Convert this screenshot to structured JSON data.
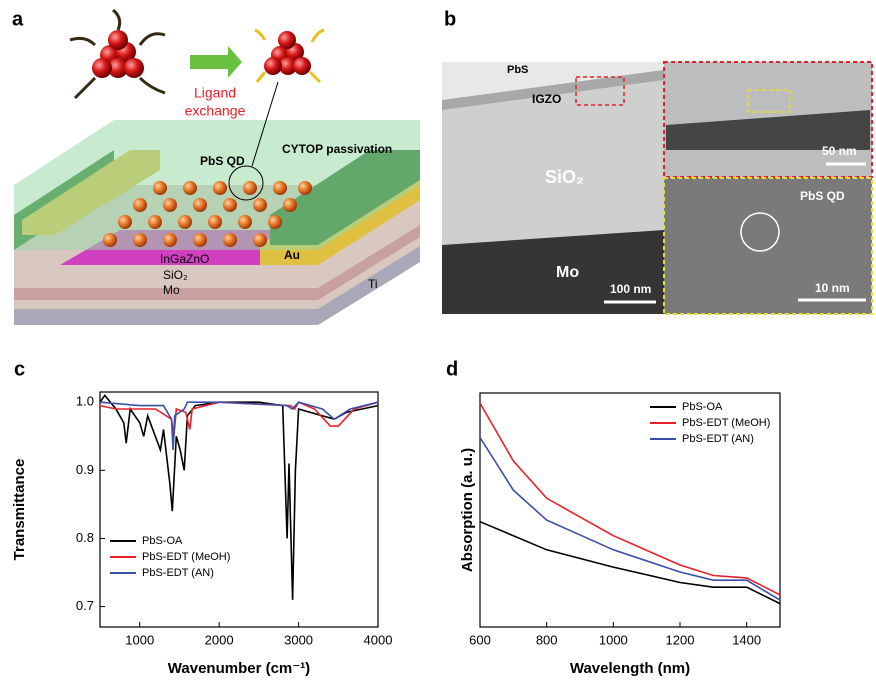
{
  "panels": {
    "a": {
      "label": "a",
      "ligand_exchange": [
        "Ligand",
        "exchange"
      ],
      "pbs_qd": "PbS QD",
      "cytop": "CYTOP passivation",
      "ingazno": "InGaZnO",
      "sio2": "SiO₂",
      "mo": "Mo",
      "au": "Au",
      "ti": "Ti"
    },
    "b": {
      "label": "b",
      "pbs": "PbS",
      "igzo": "IGZO",
      "sio2": "SiO₂",
      "mo": "Mo",
      "scale_main": "100 nm",
      "scale_top": "50 nm",
      "pbs_qd": "PbS QD",
      "scale_bottom": "10 nm"
    }
  },
  "chart_data": [
    {
      "type": "line",
      "panel_label": "c",
      "x_label": "Wavenumber (cm⁻¹)",
      "y_label": "Transmittance",
      "xlim": [
        500,
        4000
      ],
      "ylim": [
        0.67,
        1.015
      ],
      "xticks": [
        1000,
        2000,
        3000,
        4000
      ],
      "yticks": [
        0.7,
        0.8,
        0.9,
        {
          "value": 1,
          "label": "1.0"
        }
      ],
      "legend": "lower left",
      "series": [
        {
          "name": "PbS-OA",
          "color": "#000000",
          "x": [
            500,
            560,
            700,
            800,
            830,
            880,
            1000,
            1050,
            1100,
            1260,
            1300,
            1380,
            1410,
            1460,
            1510,
            1560,
            1600,
            1700,
            2000,
            2500,
            2800,
            2855,
            2880,
            2925,
            2960,
            3000,
            3300,
            3450,
            3600,
            4000
          ],
          "values": [
            1.0,
            1.01,
            0.99,
            0.97,
            0.94,
            0.99,
            0.97,
            0.95,
            0.98,
            0.93,
            0.96,
            0.88,
            0.84,
            0.95,
            0.93,
            0.9,
            0.98,
            0.995,
            1.0,
            1.0,
            0.995,
            0.8,
            0.91,
            0.71,
            0.9,
            0.99,
            0.98,
            0.975,
            0.985,
            0.995
          ]
        },
        {
          "name": "PbS-EDT (MeOH)",
          "color": "#e8202a",
          "x": [
            500,
            700,
            1000,
            1200,
            1400,
            1430,
            1460,
            1580,
            1630,
            1660,
            2000,
            2900,
            2950,
            3000,
            3200,
            3400,
            3500,
            3700,
            4000
          ],
          "values": [
            0.995,
            0.99,
            0.99,
            0.99,
            0.975,
            0.95,
            0.99,
            0.985,
            0.96,
            0.99,
            1.0,
            0.995,
            0.99,
            1.0,
            0.99,
            0.965,
            0.965,
            0.99,
            1.0
          ]
        },
        {
          "name": "PbS-EDT (AN)",
          "color": "#3a4fa8",
          "x": [
            500,
            1000,
            1300,
            1400,
            1420,
            1440,
            1560,
            1600,
            2000,
            2850,
            2920,
            3000,
            3300,
            3450,
            3650,
            4000
          ],
          "values": [
            1.0,
            0.995,
            0.995,
            0.975,
            0.93,
            0.98,
            0.99,
            1.0,
            1.0,
            0.995,
            0.99,
            1.0,
            0.99,
            0.975,
            0.99,
            1.0
          ]
        }
      ]
    },
    {
      "type": "line",
      "panel_label": "d",
      "x_label": "Wavelength (nm)",
      "y_label": "Absorption (a. u.)",
      "xlim": [
        600,
        1500
      ],
      "ylim": [
        0,
        1
      ],
      "xticks": [
        600,
        800,
        1000,
        1200,
        1400
      ],
      "legend": "upper right",
      "series": [
        {
          "name": "PbS-OA",
          "color": "#000000",
          "x": [
            600,
            800,
            1000,
            1200,
            1300,
            1400,
            1500
          ],
          "values": [
            0.45,
            0.33,
            0.256,
            0.19,
            0.17,
            0.17,
            0.1
          ]
        },
        {
          "name": "PbS-EDT (MeOH)",
          "color": "#e8202a",
          "x": [
            600,
            700,
            800,
            1000,
            1200,
            1300,
            1400,
            1500
          ],
          "values": [
            0.957,
            0.71,
            0.55,
            0.39,
            0.265,
            0.22,
            0.21,
            0.137
          ]
        },
        {
          "name": "PbS-EDT (AN)",
          "color": "#3a4fa8",
          "x": [
            600,
            700,
            800,
            1000,
            1200,
            1300,
            1400,
            1500
          ],
          "values": [
            0.81,
            0.585,
            0.457,
            0.33,
            0.235,
            0.2,
            0.2,
            0.115
          ]
        }
      ]
    }
  ]
}
